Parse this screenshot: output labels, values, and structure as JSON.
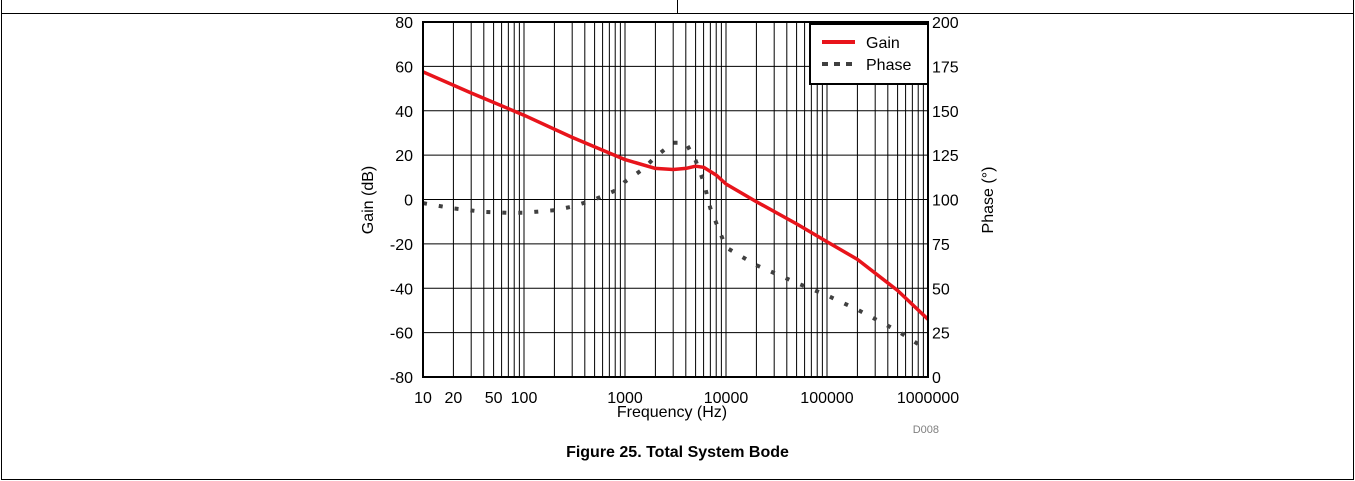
{
  "figure": {
    "caption": "Figure 25. Total System Bode",
    "code": "D008"
  },
  "chart_data": {
    "type": "line",
    "title": "",
    "xlabel": "Frequency (Hz)",
    "ylabel": "Gain (dB)",
    "y2label": "Phase (°)",
    "xscale": "log",
    "xlim": [
      10,
      1000000
    ],
    "ylim": [
      -80,
      80
    ],
    "y2lim": [
      0,
      200
    ],
    "grid": true,
    "legend_position": "top-right",
    "xticks": [
      10,
      20,
      50,
      100,
      1000,
      10000,
      100000,
      1000000
    ],
    "xtick_labels": [
      "10",
      "20",
      "50",
      "100",
      "1000",
      "10000",
      "100000",
      "1000000"
    ],
    "yticks": [
      -80,
      -60,
      -40,
      -20,
      0,
      20,
      40,
      60,
      80
    ],
    "yticklabels": [
      "-80",
      "-60",
      "-40",
      "-20",
      "0",
      "20",
      "40",
      "60",
      "80"
    ],
    "y2ticks": [
      0,
      25,
      50,
      75,
      100,
      125,
      150,
      175,
      200
    ],
    "y2ticklabels": [
      "0",
      "25",
      "50",
      "75",
      "100",
      "125",
      "150",
      "175",
      "200"
    ],
    "series": [
      {
        "name": "Gain",
        "axis": "left",
        "style": "solid",
        "color": "#e8141b",
        "x": [
          10,
          30,
          100,
          300,
          1000,
          2000,
          3000,
          4000,
          5000,
          6000,
          8000,
          10000,
          20000,
          50000,
          100000,
          200000,
          500000,
          1000000
        ],
        "y": [
          57.5,
          48,
          38,
          28,
          18,
          14,
          13.5,
          14,
          15,
          14.5,
          11,
          7,
          -1,
          -11,
          -19,
          -27,
          -41,
          -54
        ]
      },
      {
        "name": "Phase",
        "axis": "right",
        "style": "dotted",
        "color": "#404040",
        "x": [
          10,
          20,
          40,
          70,
          100,
          200,
          300,
          500,
          800,
          1000,
          1500,
          2000,
          3000,
          4000,
          5000,
          6000,
          7000,
          10000,
          20000,
          50000,
          100000,
          200000,
          500000,
          1000000
        ],
        "y": [
          98,
          95,
          93,
          92.5,
          92.5,
          94,
          96,
          100,
          105,
          110,
          117,
          124,
          132,
          132,
          122,
          110,
          95,
          73,
          63,
          53,
          46,
          38,
          26,
          15
        ]
      }
    ]
  }
}
